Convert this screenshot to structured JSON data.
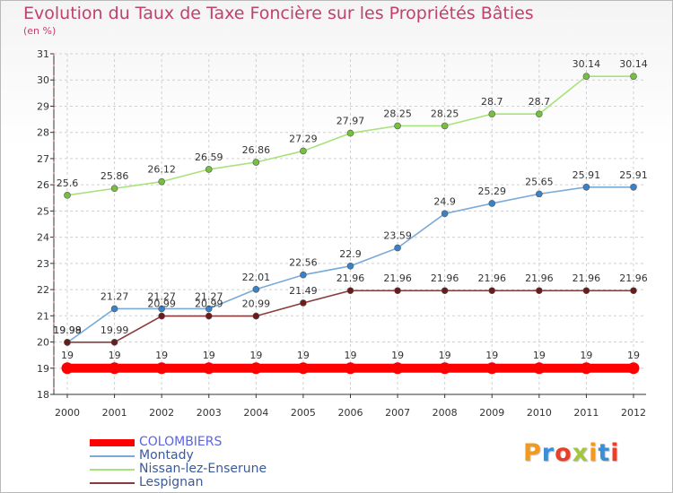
{
  "title": "Evolution du Taux de Taxe Foncière sur les Propriétés Bâties",
  "unit": "(en %)",
  "logo": {
    "text": "Proxiti",
    "letters": [
      "P",
      "r",
      "o",
      "x",
      "i",
      "t",
      "i"
    ],
    "colors": [
      "#f29a1e",
      "#3b8fd6",
      "#e83f2a",
      "#a3c73a",
      "#f29a1e",
      "#3b8fd6",
      "#e83f2a"
    ]
  },
  "colors": {
    "title": "#c0406f",
    "axis": "#333333",
    "grid": "#d0d0d0"
  },
  "chart_data": {
    "type": "line",
    "title": "Evolution du Taux de Taxe Foncière sur les Propriétés Bâties",
    "ylabel": "(en %)",
    "xlabel": "",
    "x": [
      2000,
      2001,
      2002,
      2003,
      2004,
      2005,
      2006,
      2007,
      2008,
      2009,
      2010,
      2011,
      2012
    ],
    "ylim": [
      18,
      31
    ],
    "yticks": [
      18,
      19,
      20,
      21,
      22,
      23,
      24,
      25,
      26,
      27,
      28,
      29,
      30,
      31
    ],
    "grid": "dashed",
    "legend_position": "bottom-left",
    "series": [
      {
        "name": "COLOMBIERS",
        "color": "#ff0000",
        "point_color": "#ff0000",
        "thick": true,
        "values": [
          19,
          19,
          19,
          19,
          19,
          19,
          19,
          19,
          19,
          19,
          19,
          19,
          19
        ],
        "labels": [
          "19",
          "19",
          "19",
          "19",
          "19",
          "19",
          "19",
          "19",
          "19",
          "19",
          "19",
          "19",
          "19"
        ],
        "label_below": false
      },
      {
        "name": "Montady",
        "color": "#7aaad8",
        "point_color": "#3a82c8",
        "thick": false,
        "values": [
          19.98,
          21.27,
          21.27,
          21.27,
          22.01,
          22.56,
          22.9,
          23.59,
          24.9,
          25.29,
          25.65,
          25.91,
          25.91
        ],
        "labels": [
          "19.98",
          "21.27",
          "21.27",
          "21.27",
          "22.01",
          "22.56",
          "22.9",
          "23.59",
          "24.9",
          "25.29",
          "25.65",
          "25.91",
          "25.91"
        ],
        "label_below": false
      },
      {
        "name": "Nissan-lez-Enserune",
        "color": "#a8e27a",
        "point_color": "#76c040",
        "thick": false,
        "values": [
          25.6,
          25.86,
          26.12,
          26.59,
          26.86,
          27.29,
          27.97,
          28.25,
          28.25,
          28.7,
          28.7,
          30.14,
          30.14
        ],
        "labels": [
          "25.6",
          "25.86",
          "26.12",
          "26.59",
          "26.86",
          "27.29",
          "27.97",
          "28.25",
          "28.25",
          "28.7",
          "28.7",
          "30.14",
          "30.14"
        ],
        "label_below": false
      },
      {
        "name": "Lespignan",
        "color": "#8a3a3a",
        "point_color": "#6a1c1c",
        "thick": false,
        "values": [
          19.99,
          19.99,
          20.99,
          20.99,
          20.99,
          21.49,
          21.96,
          21.96,
          21.96,
          21.96,
          21.96,
          21.96,
          21.96
        ],
        "labels": [
          "19.99",
          "19.99",
          "20.99",
          "20.99",
          "20.99",
          "21.49",
          "21.96",
          "21.96",
          "21.96",
          "21.96",
          "21.96",
          "21.96",
          "21.96"
        ],
        "label_below": false
      }
    ]
  }
}
